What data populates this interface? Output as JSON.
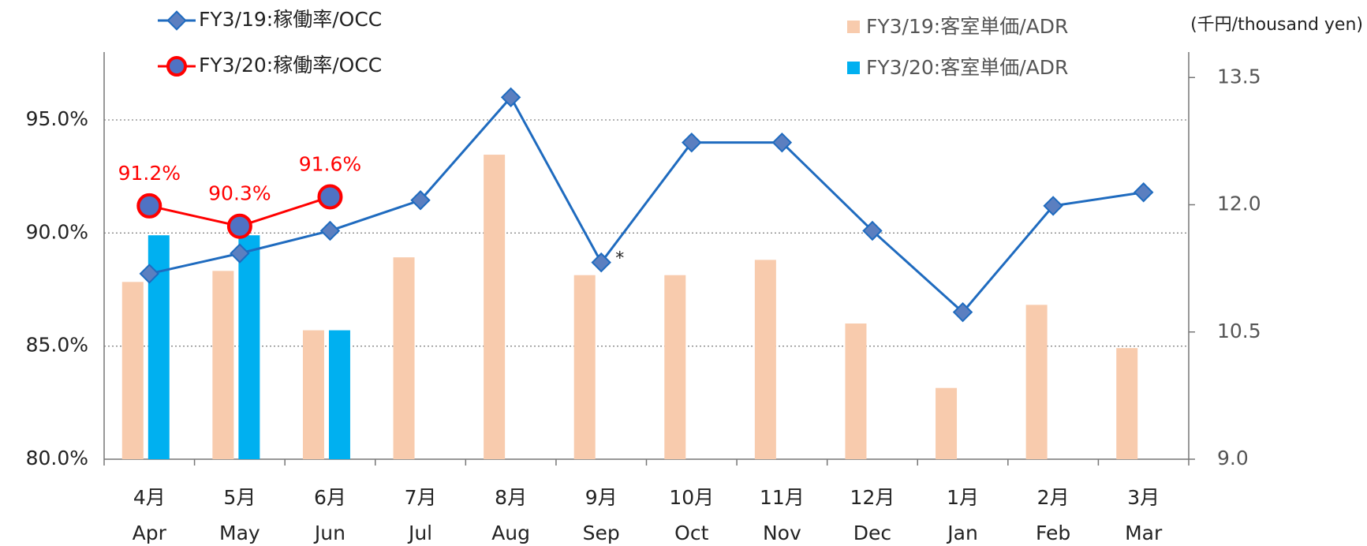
{
  "chart_data": {
    "type": "bar-line",
    "unit_label": "(千円/thousand yen)",
    "annotation": "*",
    "categories": [
      [
        "4月",
        "Apr"
      ],
      [
        "5月",
        "May"
      ],
      [
        "6月",
        "Jun"
      ],
      [
        "7月",
        "Jul"
      ],
      [
        "8月",
        "Aug"
      ],
      [
        "9月",
        "Sep"
      ],
      [
        "10月",
        "Oct"
      ],
      [
        "11月",
        "Nov"
      ],
      [
        "12月",
        "Dec"
      ],
      [
        "1月",
        "Jan"
      ],
      [
        "2月",
        "Feb"
      ],
      [
        "3月",
        "Mar"
      ]
    ],
    "ylim": [
      80,
      98
    ],
    "yticks": [
      {
        "value": 80,
        "label": "80.0%"
      },
      {
        "value": 85,
        "label": "85.0%"
      },
      {
        "value": 90,
        "label": "90.0%"
      },
      {
        "value": 95,
        "label": "95.0%"
      }
    ],
    "y2lim": [
      9,
      13.8
    ],
    "y2ticks": [
      {
        "value": 9,
        "label": "9.0"
      },
      10.5,
      {
        "value": 12,
        "label": "12.0"
      },
      13.5
    ],
    "grid": true,
    "series": [
      {
        "name": "FY3/19:客室単価/ADR",
        "type": "bar",
        "axis": "y2",
        "color": "#f8cbad",
        "values": [
          11.09,
          11.22,
          10.52,
          11.38,
          12.59,
          11.17,
          11.17,
          11.35,
          10.6,
          9.84,
          10.82,
          10.31
        ]
      },
      {
        "name": "FY3/20:客室単価/ADR",
        "type": "bar",
        "axis": "y2",
        "color": "#00b0f0",
        "values": [
          11.64,
          11.64,
          10.52,
          null,
          null,
          null,
          null,
          null,
          null,
          null,
          null,
          null
        ]
      },
      {
        "name": "FY3/19:稼働率/OCC",
        "type": "line",
        "color": "#1f6bbf",
        "values": [
          88.2,
          89.1,
          90.1,
          91.45,
          96.0,
          88.7,
          94.0,
          94.0,
          90.1,
          86.5,
          91.2,
          91.8
        ]
      },
      {
        "name": "FY3/20:稼働率/OCC",
        "type": "line",
        "color": "#ff0000",
        "values": [
          91.2,
          90.3,
          91.6,
          null,
          null,
          null,
          null,
          null,
          null,
          null,
          null,
          null
        ],
        "value_labels": [
          "91.2%",
          "90.3%",
          "91.6%",
          null,
          null,
          null,
          null,
          null,
          null,
          null,
          null,
          null
        ]
      }
    ]
  }
}
